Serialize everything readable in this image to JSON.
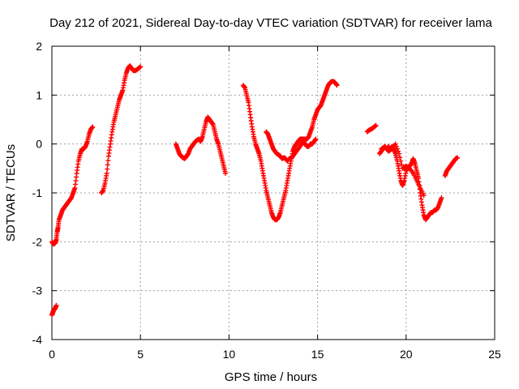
{
  "chart_data": {
    "type": "scatter",
    "title": "Day 212 of 2021, Sidereal Day-to-day VTEC variation (SDTVAR) for receiver lama",
    "xlabel": "GPS time / hours",
    "ylabel": "SDTVAR / TECUs",
    "xlim": [
      0,
      25
    ],
    "ylim": [
      -4,
      2
    ],
    "xticks": [
      "0",
      "5",
      "10",
      "15",
      "20",
      "25"
    ],
    "yticks": [
      "-4",
      "-3",
      "-2",
      "-1",
      "0",
      "1",
      "2"
    ],
    "grid": true,
    "marker": "plus",
    "colors": {
      "series": "#ff0000",
      "axis": "#000000",
      "grid": "#a0a0a0"
    },
    "series": [
      {
        "segments": [
          {
            "x": [
              0.0,
              0.05,
              0.1,
              0.15,
              0.2,
              0.25
            ],
            "y": [
              -3.5,
              -3.45,
              -3.4,
              -3.38,
              -3.35,
              -3.3
            ]
          },
          {
            "x": [
              0.0,
              0.1,
              0.2,
              0.25,
              0.3,
              0.35,
              0.4,
              0.5,
              0.6,
              0.7,
              0.8,
              0.9,
              1.0,
              1.1,
              1.2,
              1.3,
              1.4,
              1.5,
              1.6,
              1.7,
              1.8,
              1.9,
              2.0,
              2.1,
              2.2,
              2.3
            ],
            "y": [
              -2.0,
              -2.05,
              -2.02,
              -1.95,
              -1.8,
              -1.7,
              -1.55,
              -1.45,
              -1.35,
              -1.3,
              -1.25,
              -1.2,
              -1.15,
              -1.1,
              -1.0,
              -0.9,
              -0.6,
              -0.35,
              -0.2,
              -0.1,
              -0.1,
              -0.05,
              0.05,
              0.2,
              0.3,
              0.35
            ]
          },
          {
            "x": [
              2.8,
              2.9,
              3.0,
              3.1,
              3.2,
              3.3,
              3.4,
              3.5,
              3.6,
              3.7,
              3.8,
              3.9,
              4.0,
              4.1,
              4.2,
              4.3,
              4.4,
              4.5,
              4.6,
              4.7,
              4.8,
              4.9,
              5.0
            ],
            "y": [
              -1.0,
              -0.95,
              -0.8,
              -0.6,
              -0.25,
              0.0,
              0.25,
              0.45,
              0.6,
              0.75,
              0.9,
              1.0,
              1.1,
              1.3,
              1.45,
              1.55,
              1.6,
              1.55,
              1.5,
              1.5,
              1.52,
              1.55,
              1.58
            ]
          },
          {
            "x": [
              7.0,
              7.1,
              7.2,
              7.3,
              7.4,
              7.5,
              7.6,
              7.7,
              7.8,
              7.9,
              8.0,
              8.1,
              8.2,
              8.3,
              8.4,
              8.5,
              8.6,
              8.7,
              8.8,
              8.9,
              9.0,
              9.1,
              9.2,
              9.3,
              9.4,
              9.5,
              9.6,
              9.7,
              9.8
            ],
            "y": [
              0.0,
              -0.1,
              -0.2,
              -0.25,
              -0.28,
              -0.3,
              -0.25,
              -0.2,
              -0.1,
              -0.05,
              0.0,
              0.05,
              0.08,
              0.1,
              0.05,
              0.15,
              0.3,
              0.45,
              0.55,
              0.5,
              0.45,
              0.4,
              0.25,
              0.1,
              0.0,
              -0.15,
              -0.3,
              -0.45,
              -0.6
            ]
          },
          {
            "x": [
              10.8,
              10.9,
              11.0,
              11.1,
              11.2,
              11.3,
              11.4,
              11.5,
              11.6,
              11.7,
              11.8,
              11.9,
              12.0,
              12.1,
              12.2,
              12.3,
              12.4,
              12.5,
              12.6,
              12.7,
              12.8,
              12.9,
              13.0,
              13.1,
              13.2,
              13.3,
              13.4,
              13.5,
              13.6,
              13.7,
              13.8,
              13.9,
              14.0,
              14.1,
              14.2,
              14.3,
              14.4,
              14.5,
              14.6,
              14.7,
              14.8,
              14.9,
              15.0,
              15.1,
              15.2,
              15.3,
              15.4,
              15.5,
              15.6,
              15.7,
              15.8,
              15.9,
              16.0,
              16.1
            ],
            "y": [
              1.2,
              1.15,
              1.0,
              0.85,
              0.6,
              0.35,
              0.15,
              0.0,
              -0.1,
              -0.2,
              -0.35,
              -0.55,
              -0.75,
              -0.95,
              -1.1,
              -1.25,
              -1.4,
              -1.5,
              -1.55,
              -1.55,
              -1.5,
              -1.4,
              -1.25,
              -1.1,
              -0.95,
              -0.75,
              -0.55,
              -0.35,
              -0.15,
              -0.05,
              0.0,
              0.05,
              0.1,
              0.1,
              0.1,
              0.1,
              0.1,
              0.15,
              0.25,
              0.35,
              0.5,
              0.6,
              0.7,
              0.75,
              0.8,
              0.9,
              1.0,
              1.1,
              1.2,
              1.25,
              1.28,
              1.28,
              1.25,
              1.2
            ]
          },
          {
            "x": [
              12.1,
              12.2,
              12.3,
              12.4,
              12.5,
              12.6,
              12.7,
              12.8,
              12.9,
              13.0,
              13.1,
              13.2,
              13.3,
              13.4,
              13.5,
              13.6,
              13.7,
              13.8,
              13.9,
              14.0,
              14.1,
              14.2,
              14.3,
              14.4,
              14.5,
              14.6,
              14.7,
              14.8,
              14.9
            ],
            "y": [
              0.25,
              0.2,
              0.1,
              0.0,
              -0.1,
              -0.15,
              -0.2,
              -0.22,
              -0.25,
              -0.3,
              -0.28,
              -0.3,
              -0.35,
              -0.3,
              -0.3,
              -0.25,
              -0.2,
              -0.15,
              -0.1,
              -0.05,
              0.0,
              0.05,
              0.0,
              -0.05,
              -0.05,
              0.0,
              0.0,
              0.05,
              0.1
            ]
          },
          {
            "x": [
              17.8,
              17.9,
              18.0,
              18.1,
              18.2,
              18.3
            ],
            "y": [
              0.25,
              0.28,
              0.3,
              0.32,
              0.35,
              0.38
            ]
          },
          {
            "x": [
              18.5,
              18.6,
              18.7,
              18.8,
              18.9,
              19.0,
              19.1,
              19.2,
              19.3,
              19.4,
              19.5,
              19.6,
              19.7,
              19.8,
              19.9,
              20.0,
              20.1,
              20.2,
              20.3,
              20.4,
              20.5,
              20.6,
              20.7,
              20.8,
              20.9,
              21.0,
              21.1,
              21.2,
              21.3,
              21.4,
              21.5,
              21.6,
              21.7,
              21.8,
              21.9,
              22.0
            ],
            "y": [
              -0.2,
              -0.15,
              -0.1,
              -0.05,
              -0.1,
              -0.05,
              -0.1,
              -0.05,
              -0.1,
              -0.2,
              -0.35,
              -0.55,
              -0.75,
              -0.85,
              -0.75,
              -0.55,
              -0.5,
              -0.45,
              -0.4,
              -0.3,
              -0.4,
              -0.55,
              -0.7,
              -1.0,
              -1.25,
              -1.45,
              -1.55,
              -1.5,
              -1.45,
              -1.4,
              -1.4,
              -1.35,
              -1.35,
              -1.3,
              -1.2,
              -1.1
            ]
          },
          {
            "x": [
              18.6,
              18.8,
              19.0,
              19.2,
              19.4,
              19.6,
              19.8,
              20.0,
              20.2,
              20.4,
              20.6,
              20.8,
              21.0
            ],
            "y": [
              -0.1,
              -0.05,
              -0.15,
              -0.1,
              0.0,
              -0.2,
              -0.5,
              -0.45,
              -0.5,
              -0.6,
              -0.75,
              -0.9,
              -1.05
            ]
          },
          {
            "x": [
              22.2,
              22.3,
              22.4,
              22.5,
              22.6,
              22.7,
              22.8,
              22.9
            ],
            "y": [
              -0.65,
              -0.55,
              -0.5,
              -0.45,
              -0.4,
              -0.35,
              -0.3,
              -0.28
            ]
          }
        ]
      }
    ]
  }
}
